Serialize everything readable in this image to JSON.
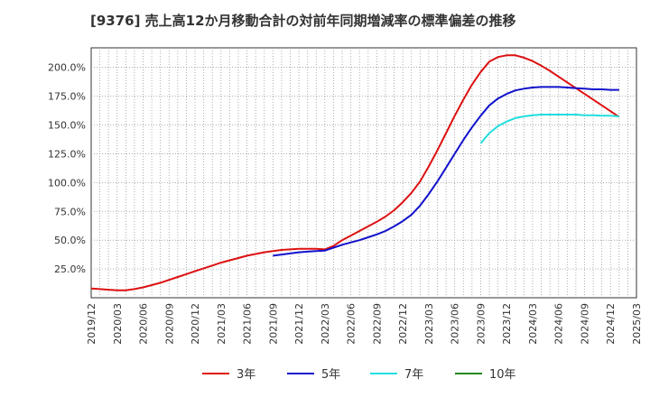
{
  "chart_data": {
    "type": "line",
    "title": "[9376]  売上高12か月移動合計の対前年同期増減率の標準偏差の推移",
    "xlabel": "",
    "ylabel": "",
    "x_ticks": [
      "2019/12",
      "2020/03",
      "2020/06",
      "2020/09",
      "2020/12",
      "2021/03",
      "2021/06",
      "2021/09",
      "2021/12",
      "2022/03",
      "2022/06",
      "2022/09",
      "2022/12",
      "2023/03",
      "2023/06",
      "2023/09",
      "2023/12",
      "2024/03",
      "2024/06",
      "2024/09",
      "2024/12",
      "2025/03"
    ],
    "y_ticks": [
      "25.0%",
      "50.0%",
      "75.0%",
      "100.0%",
      "125.0%",
      "150.0%",
      "175.0%",
      "200.0%"
    ],
    "ylim": [
      0,
      217
    ],
    "grid": true,
    "legend_position": "bottom",
    "series": [
      {
        "name": "3年",
        "color": "#dd1111",
        "points": [
          [
            "2019/12",
            8
          ],
          [
            "2020/01",
            7.5
          ],
          [
            "2020/02",
            7
          ],
          [
            "2020/03",
            6.5
          ],
          [
            "2020/04",
            6.5
          ],
          [
            "2020/05",
            7.5
          ],
          [
            "2020/06",
            9
          ],
          [
            "2020/07",
            11
          ],
          [
            "2020/08",
            13
          ],
          [
            "2020/09",
            15.5
          ],
          [
            "2020/10",
            18
          ],
          [
            "2020/11",
            20.5
          ],
          [
            "2020/12",
            23
          ],
          [
            "2021/01",
            25.5
          ],
          [
            "2021/02",
            28
          ],
          [
            "2021/03",
            30.5
          ],
          [
            "2021/04",
            32.5
          ],
          [
            "2021/05",
            34.5
          ],
          [
            "2021/06",
            36.5
          ],
          [
            "2021/07",
            38
          ],
          [
            "2021/08",
            39.5
          ],
          [
            "2021/09",
            40.5
          ],
          [
            "2021/10",
            41.5
          ],
          [
            "2021/11",
            42
          ],
          [
            "2021/12",
            42.5
          ],
          [
            "2022/01",
            42.5
          ],
          [
            "2022/02",
            42.5
          ],
          [
            "2022/03",
            42
          ],
          [
            "2022/04",
            45
          ],
          [
            "2022/05",
            50
          ],
          [
            "2022/06",
            54
          ],
          [
            "2022/07",
            58
          ],
          [
            "2022/08",
            62
          ],
          [
            "2022/09",
            66
          ],
          [
            "2022/10",
            70.5
          ],
          [
            "2022/11",
            76
          ],
          [
            "2022/12",
            83
          ],
          [
            "2023/01",
            91
          ],
          [
            "2023/02",
            101
          ],
          [
            "2023/03",
            114
          ],
          [
            "2023/04",
            128
          ],
          [
            "2023/05",
            143
          ],
          [
            "2023/06",
            158
          ],
          [
            "2023/07",
            172
          ],
          [
            "2023/08",
            185
          ],
          [
            "2023/09",
            196
          ],
          [
            "2023/10",
            205
          ],
          [
            "2023/11",
            209
          ],
          [
            "2023/12",
            210.5
          ],
          [
            "2024/01",
            210.5
          ],
          [
            "2024/02",
            208.5
          ],
          [
            "2024/03",
            205.5
          ],
          [
            "2024/04",
            201.5
          ],
          [
            "2024/05",
            197
          ],
          [
            "2024/06",
            192
          ],
          [
            "2024/07",
            187
          ],
          [
            "2024/08",
            182
          ],
          [
            "2024/09",
            177
          ],
          [
            "2024/10",
            172
          ],
          [
            "2024/11",
            167
          ],
          [
            "2024/12",
            162
          ],
          [
            "2025/01",
            157
          ]
        ]
      },
      {
        "name": "5年",
        "color": "#1111cc",
        "points": [
          [
            "2021/09",
            36.5
          ],
          [
            "2021/10",
            37.5
          ],
          [
            "2021/11",
            38.5
          ],
          [
            "2021/12",
            39.5
          ],
          [
            "2022/01",
            40
          ],
          [
            "2022/02",
            40.5
          ],
          [
            "2022/03",
            41
          ],
          [
            "2022/04",
            43.5
          ],
          [
            "2022/05",
            46
          ],
          [
            "2022/06",
            48
          ],
          [
            "2022/07",
            50
          ],
          [
            "2022/08",
            52.5
          ],
          [
            "2022/09",
            55
          ],
          [
            "2022/10",
            58
          ],
          [
            "2022/11",
            62
          ],
          [
            "2022/12",
            66.5
          ],
          [
            "2023/01",
            72
          ],
          [
            "2023/02",
            80
          ],
          [
            "2023/03",
            90
          ],
          [
            "2023/04",
            101
          ],
          [
            "2023/05",
            113
          ],
          [
            "2023/06",
            125
          ],
          [
            "2023/07",
            137
          ],
          [
            "2023/08",
            148
          ],
          [
            "2023/09",
            158
          ],
          [
            "2023/10",
            167
          ],
          [
            "2023/11",
            173
          ],
          [
            "2023/12",
            177
          ],
          [
            "2024/01",
            180
          ],
          [
            "2024/02",
            181.5
          ],
          [
            "2024/03",
            182.5
          ],
          [
            "2024/04",
            183
          ],
          [
            "2024/05",
            183
          ],
          [
            "2024/06",
            183
          ],
          [
            "2024/07",
            182.5
          ],
          [
            "2024/08",
            182
          ],
          [
            "2024/09",
            181.5
          ],
          [
            "2024/10",
            181
          ],
          [
            "2024/11",
            181
          ],
          [
            "2024/12",
            180.5
          ],
          [
            "2025/01",
            180.5
          ]
        ]
      },
      {
        "name": "7年",
        "color": "#22dddd",
        "points": [
          [
            "2023/09",
            134
          ],
          [
            "2023/10",
            143
          ],
          [
            "2023/11",
            149
          ],
          [
            "2023/12",
            153
          ],
          [
            "2024/01",
            156
          ],
          [
            "2024/02",
            157.5
          ],
          [
            "2024/03",
            158.5
          ],
          [
            "2024/04",
            159
          ],
          [
            "2024/05",
            159
          ],
          [
            "2024/06",
            159
          ],
          [
            "2024/07",
            159
          ],
          [
            "2024/08",
            159
          ],
          [
            "2024/09",
            158.5
          ],
          [
            "2024/10",
            158.5
          ],
          [
            "2024/11",
            158
          ],
          [
            "2024/12",
            158
          ],
          [
            "2025/01",
            157.5
          ]
        ]
      },
      {
        "name": "10年",
        "color": "#228822",
        "points": [
          [
            "2025/01",
            157
          ]
        ]
      }
    ]
  }
}
